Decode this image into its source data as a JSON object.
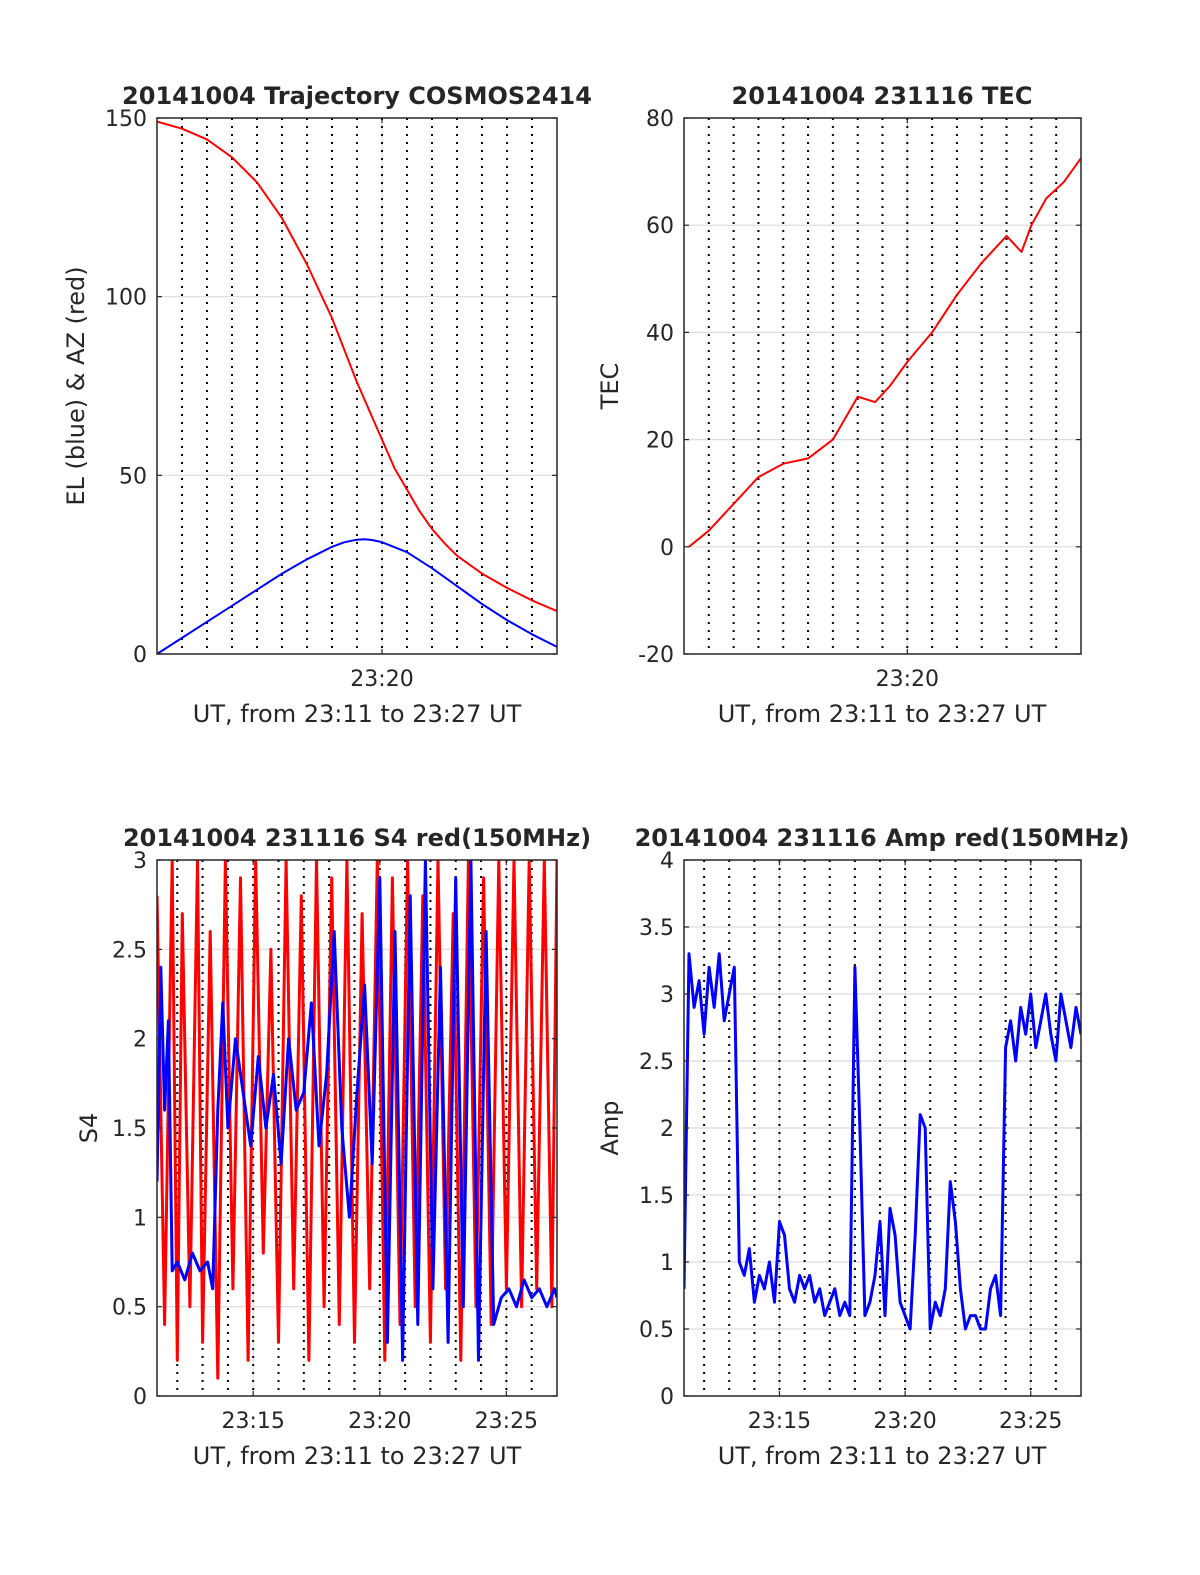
{
  "colors": {
    "red": "#ff0000",
    "blue": "#0000ff",
    "grid_major": "#dcdcdc",
    "grid_dotted": "#000000",
    "frame": "#262626"
  },
  "chart_data": [
    {
      "id": "trajectory",
      "type": "line",
      "title": "20141004 Trajectory COSMOS2414",
      "xlabel": "UT, from 23:11 to 23:27 UT",
      "ylabel": "EL (blue) & AZ (red)",
      "x_range_minutes": [
        671.0,
        687.0
      ],
      "ylim": [
        0,
        150
      ],
      "yticks": [
        0,
        50,
        100,
        150
      ],
      "xticks": [
        {
          "minute": 680,
          "label": "23:20"
        }
      ],
      "dotted_grid_minutes": [
        672,
        673,
        674,
        675,
        676,
        677,
        678,
        679,
        680,
        681,
        682,
        683,
        684,
        685,
        686
      ],
      "grid": true,
      "series": [
        {
          "color": "red",
          "x": [
            671.0,
            672.0,
            673.0,
            674.0,
            675.0,
            676.0,
            677.0,
            678.0,
            678.5,
            679.0,
            679.5,
            680.0,
            680.5,
            681.0,
            681.5,
            682.0,
            682.5,
            683.0,
            684.0,
            685.0,
            686.0,
            687.0
          ],
          "y": [
            149,
            147,
            144,
            139,
            132,
            122,
            109,
            94,
            85,
            76,
            68,
            60,
            52,
            46,
            40,
            35,
            31,
            27.5,
            22.5,
            18.5,
            15,
            12
          ]
        },
        {
          "color": "blue",
          "x": [
            671.0,
            672.0,
            673.0,
            674.0,
            675.0,
            676.0,
            677.0,
            678.0,
            678.5,
            679.0,
            679.3,
            679.6,
            680.0,
            681.0,
            682.0,
            683.0,
            684.0,
            685.0,
            686.0,
            687.0
          ],
          "y": [
            0,
            4.5,
            9,
            13.5,
            18,
            22.5,
            26.5,
            30,
            31.3,
            32,
            32.1,
            31.9,
            31.3,
            28.5,
            24,
            19,
            14,
            9.5,
            5.5,
            2
          ]
        }
      ]
    },
    {
      "id": "tec",
      "type": "line",
      "title": "20141004 231116 TEC",
      "xlabel": "UT, from 23:11 to 23:27 UT",
      "ylabel": "TEC",
      "x_range_minutes": [
        671.0,
        687.0
      ],
      "ylim": [
        -20,
        80
      ],
      "yticks": [
        -20,
        0,
        20,
        40,
        60,
        80
      ],
      "xticks": [
        {
          "minute": 680,
          "label": "23:20"
        }
      ],
      "dotted_grid_minutes": [
        672,
        673,
        674,
        675,
        676,
        677,
        678,
        679,
        680,
        681,
        682,
        683,
        684,
        685,
        686
      ],
      "grid": true,
      "series": [
        {
          "color": "red",
          "x": [
            671.2,
            672.0,
            673.0,
            674.0,
            675.0,
            676.0,
            677.0,
            678.0,
            678.7,
            679.3,
            680.0,
            681.0,
            682.0,
            683.0,
            684.0,
            684.6,
            685.0,
            685.6,
            686.3,
            687.0
          ],
          "y": [
            0,
            3,
            8,
            13,
            15.5,
            16.5,
            20,
            28,
            27,
            30,
            34.5,
            40,
            47,
            53,
            58,
            55,
            60,
            65,
            68,
            72.5
          ]
        }
      ]
    },
    {
      "id": "s4",
      "type": "line",
      "title": "20141004 231116 S4 red(150MHz)",
      "xlabel": "UT, from 23:11 to 23:27 UT",
      "ylabel": "S4",
      "x_range_minutes": [
        671.2,
        687.0
      ],
      "ylim": [
        0,
        3
      ],
      "yticks": [
        0,
        0.5,
        1,
        1.5,
        2,
        2.5,
        3
      ],
      "xticks": [
        {
          "minute": 675,
          "label": "23:15"
        },
        {
          "minute": 680,
          "label": "23:20"
        },
        {
          "minute": 685,
          "label": "23:25"
        }
      ],
      "dotted_grid_minutes": [
        672,
        673,
        674,
        675,
        676,
        677,
        678,
        679,
        680,
        681,
        682,
        683,
        684,
        685,
        686
      ],
      "grid": true,
      "series": [
        {
          "color": "red",
          "x": [
            671.2,
            671.5,
            671.8,
            672.0,
            672.2,
            672.5,
            672.8,
            673.0,
            673.3,
            673.6,
            673.9,
            674.2,
            674.5,
            674.8,
            675.1,
            675.4,
            675.7,
            676.0,
            676.3,
            676.6,
            676.9,
            677.2,
            677.5,
            677.8,
            678.1,
            678.4,
            678.7,
            679.0,
            679.3,
            679.6,
            679.9,
            680.2,
            680.5,
            680.8,
            681.1,
            681.4,
            681.7,
            682.0,
            682.3,
            682.6,
            682.9,
            683.2,
            683.5,
            683.8,
            684.1,
            684.4,
            684.7,
            685.0,
            685.3,
            685.6,
            685.9,
            686.2,
            686.5,
            686.8,
            687.0
          ],
          "y": [
            2.8,
            0.4,
            3.0,
            0.2,
            2.7,
            0.5,
            3.0,
            0.3,
            2.6,
            0.1,
            3.0,
            0.6,
            2.9,
            0.2,
            3.0,
            0.8,
            2.5,
            0.3,
            3.0,
            0.6,
            2.8,
            0.2,
            3.0,
            0.5,
            2.9,
            0.4,
            3.0,
            0.3,
            2.7,
            0.6,
            3.0,
            0.2,
            2.9,
            0.4,
            3.0,
            0.5,
            2.8,
            0.3,
            3.0,
            0.6,
            2.7,
            0.2,
            3.0,
            0.5,
            2.9,
            0.4,
            3.0,
            0.6,
            3.0,
            0.5,
            3.0,
            0.6,
            3.0,
            0.5,
            3.0
          ]
        },
        {
          "color": "blue",
          "x": [
            671.2,
            671.35,
            671.5,
            671.65,
            671.8,
            672.0,
            672.3,
            672.6,
            672.9,
            673.2,
            673.4,
            673.6,
            673.8,
            674.0,
            674.3,
            674.6,
            674.9,
            675.2,
            675.5,
            675.8,
            676.1,
            676.4,
            676.7,
            677.0,
            677.3,
            677.6,
            677.9,
            678.2,
            678.5,
            678.8,
            679.1,
            679.4,
            679.7,
            680.0,
            680.3,
            680.6,
            680.9,
            681.2,
            681.5,
            681.8,
            682.1,
            682.4,
            682.7,
            683.0,
            683.3,
            683.6,
            683.9,
            684.2,
            684.5,
            684.8,
            685.1,
            685.4,
            685.7,
            686.0,
            686.3,
            686.6,
            686.9,
            687.0
          ],
          "y": [
            1.2,
            2.4,
            1.6,
            2.1,
            0.7,
            0.75,
            0.65,
            0.8,
            0.7,
            0.75,
            0.6,
            1.6,
            2.2,
            1.5,
            2.0,
            1.7,
            1.4,
            1.9,
            1.5,
            1.8,
            1.3,
            2.0,
            1.6,
            1.7,
            2.2,
            1.4,
            1.8,
            2.6,
            1.5,
            1.0,
            1.7,
            2.3,
            1.3,
            2.9,
            0.3,
            2.6,
            0.2,
            2.8,
            0.4,
            3.0,
            0.6,
            2.4,
            0.3,
            2.9,
            0.5,
            3.0,
            0.2,
            2.6,
            0.4,
            0.55,
            0.6,
            0.5,
            0.65,
            0.55,
            0.6,
            0.5,
            0.6,
            0.55
          ]
        }
      ]
    },
    {
      "id": "amp",
      "type": "line",
      "title": "20141004 231116 Amp red(150MHz)",
      "xlabel": "UT, from 23:11 to 23:27 UT",
      "ylabel": "Amp",
      "x_range_minutes": [
        671.2,
        687.0
      ],
      "ylim": [
        0,
        4
      ],
      "yticks": [
        0,
        0.5,
        1,
        1.5,
        2,
        2.5,
        3,
        3.5,
        4
      ],
      "xticks": [
        {
          "minute": 675,
          "label": "23:15"
        },
        {
          "minute": 680,
          "label": "23:20"
        },
        {
          "minute": 685,
          "label": "23:25"
        }
      ],
      "dotted_grid_minutes": [
        672,
        673,
        674,
        675,
        676,
        677,
        678,
        679,
        680,
        681,
        682,
        683,
        684,
        685,
        686
      ],
      "grid": true,
      "series": [
        {
          "color": "blue",
          "x": [
            671.2,
            671.4,
            671.6,
            671.8,
            672.0,
            672.2,
            672.4,
            672.6,
            672.8,
            673.0,
            673.2,
            673.4,
            673.6,
            673.8,
            674.0,
            674.2,
            674.4,
            674.6,
            674.8,
            675.0,
            675.2,
            675.4,
            675.6,
            675.8,
            676.0,
            676.2,
            676.4,
            676.6,
            676.8,
            677.0,
            677.2,
            677.4,
            677.6,
            677.8,
            678.0,
            678.2,
            678.4,
            678.6,
            678.8,
            679.0,
            679.2,
            679.4,
            679.6,
            679.8,
            680.0,
            680.2,
            680.4,
            680.6,
            680.8,
            681.0,
            681.2,
            681.4,
            681.6,
            681.8,
            682.0,
            682.2,
            682.4,
            682.6,
            682.8,
            683.0,
            683.2,
            683.4,
            683.6,
            683.8,
            684.0,
            684.2,
            684.4,
            684.6,
            684.8,
            685.0,
            685.2,
            685.4,
            685.6,
            685.8,
            686.0,
            686.2,
            686.4,
            686.6,
            686.8,
            687.0
          ],
          "y": [
            0.8,
            3.3,
            2.9,
            3.1,
            2.7,
            3.2,
            2.9,
            3.3,
            2.8,
            3.0,
            3.2,
            1.0,
            0.9,
            1.1,
            0.7,
            0.9,
            0.8,
            1.0,
            0.7,
            1.3,
            1.2,
            0.8,
            0.7,
            0.9,
            0.8,
            0.9,
            0.7,
            0.8,
            0.6,
            0.7,
            0.8,
            0.6,
            0.7,
            0.6,
            3.2,
            2.0,
            0.6,
            0.7,
            0.9,
            1.3,
            0.6,
            1.4,
            1.2,
            0.7,
            0.6,
            0.5,
            1.2,
            2.1,
            2.0,
            0.5,
            0.7,
            0.6,
            0.8,
            1.6,
            1.3,
            0.8,
            0.5,
            0.6,
            0.6,
            0.5,
            0.5,
            0.8,
            0.9,
            0.6,
            2.6,
            2.8,
            2.5,
            2.9,
            2.7,
            3.0,
            2.6,
            2.8,
            3.0,
            2.7,
            2.5,
            3.0,
            2.8,
            2.6,
            2.9,
            2.7
          ]
        }
      ]
    }
  ]
}
